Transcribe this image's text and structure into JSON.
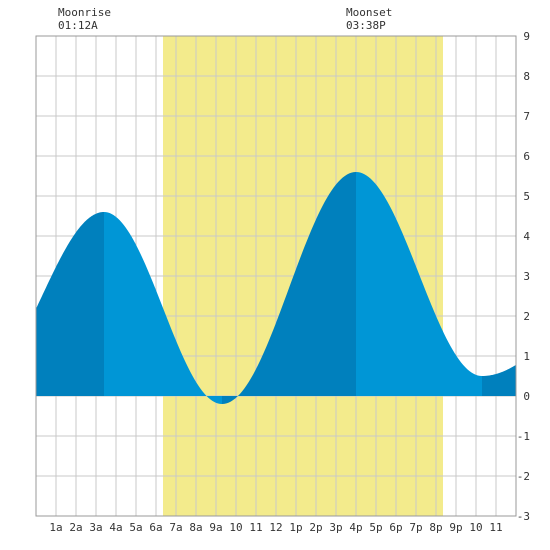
{
  "moon": {
    "rise_label": "Moonrise",
    "rise_time": "01:12A",
    "set_label": "Moonset",
    "set_time": "03:38P"
  },
  "chart_data": {
    "type": "area",
    "title": "",
    "xlabel": "",
    "ylabel": "",
    "x_range_hours": [
      0,
      24
    ],
    "ylim": [
      -3,
      9
    ],
    "y_ticks": [
      -3,
      -2,
      -1,
      0,
      1,
      2,
      3,
      4,
      5,
      6,
      7,
      8,
      9
    ],
    "x_tick_labels": [
      {
        "hour": 1,
        "label": "1a"
      },
      {
        "hour": 2,
        "label": "2a"
      },
      {
        "hour": 3,
        "label": "3a"
      },
      {
        "hour": 4,
        "label": "4a"
      },
      {
        "hour": 5,
        "label": "5a"
      },
      {
        "hour": 6,
        "label": "6a"
      },
      {
        "hour": 7,
        "label": "7a"
      },
      {
        "hour": 8,
        "label": "8a"
      },
      {
        "hour": 9,
        "label": "9a"
      },
      {
        "hour": 10,
        "label": "10"
      },
      {
        "hour": 11,
        "label": "11"
      },
      {
        "hour": 12,
        "label": "12"
      },
      {
        "hour": 13,
        "label": "1p"
      },
      {
        "hour": 14,
        "label": "2p"
      },
      {
        "hour": 15,
        "label": "3p"
      },
      {
        "hour": 16,
        "label": "4p"
      },
      {
        "hour": 17,
        "label": "5p"
      },
      {
        "hour": 18,
        "label": "6p"
      },
      {
        "hour": 19,
        "label": "7p"
      },
      {
        "hour": 20,
        "label": "8p"
      },
      {
        "hour": 21,
        "label": "9p"
      },
      {
        "hour": 22,
        "label": "10"
      },
      {
        "hour": 23,
        "label": "11"
      }
    ],
    "grid": true,
    "daylight_hours": [
      6.35,
      20.35
    ],
    "extremes": [
      {
        "hour": 3.4,
        "height": 4.6,
        "kind": "high"
      },
      {
        "hour": 9.3,
        "height": -0.2,
        "kind": "low"
      },
      {
        "hour": 16.0,
        "height": 5.6,
        "kind": "high"
      },
      {
        "hour": 22.3,
        "height": 0.5,
        "kind": "low"
      }
    ],
    "start_height": 2.5,
    "end_height": 1.3,
    "colors": {
      "daylight": "#f3eb8c",
      "water_light": "#0096d6",
      "water_dark": "#0080bd",
      "grid": "#c8c8c8",
      "axis_text": "#333333"
    }
  }
}
